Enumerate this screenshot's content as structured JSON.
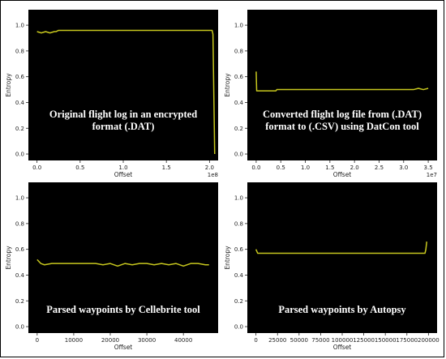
{
  "chart_data": [
    {
      "type": "line",
      "overlay_lines": [
        "Original flight log in an encrypted",
        "format (.DAT)"
      ],
      "xlabel": "Offset",
      "ylabel": "Entropy",
      "xlim": [
        -0.1,
        2.1
      ],
      "ylim": [
        -0.05,
        1.12
      ],
      "x_ticks": [
        0.0,
        0.5,
        1.0,
        1.5,
        2.0
      ],
      "x_tick_labels": [
        "0.0",
        "0.5",
        "1.0",
        "1.5",
        "2.0"
      ],
      "x_multiplier": "1e8",
      "y_ticks": [
        0.0,
        0.2,
        0.4,
        0.6,
        0.8,
        1.0
      ],
      "y_tick_labels": [
        "0.0",
        "0.2",
        "0.4",
        "0.6",
        "0.8",
        "1.0"
      ],
      "series": [
        {
          "x": [
            0.0,
            0.05,
            0.1,
            0.15,
            0.2,
            0.22,
            0.25,
            0.3,
            0.5,
            0.7,
            0.9,
            1.1,
            1.3,
            1.5,
            1.7,
            1.9,
            2.0,
            2.03,
            2.04,
            2.06
          ],
          "y": [
            0.95,
            0.94,
            0.95,
            0.94,
            0.95,
            0.95,
            0.96,
            0.96,
            0.96,
            0.96,
            0.96,
            0.96,
            0.96,
            0.96,
            0.96,
            0.96,
            0.96,
            0.96,
            0.93,
            0.0
          ]
        }
      ]
    },
    {
      "type": "line",
      "overlay_lines": [
        "Converted flight log file from (.DAT)",
        "format to (.CSV) using DatCon tool"
      ],
      "xlabel": "Offset",
      "ylabel": "Entropy",
      "xlim": [
        -0.18,
        3.68
      ],
      "ylim": [
        -0.05,
        1.12
      ],
      "x_ticks": [
        0.0,
        0.5,
        1.0,
        1.5,
        2.0,
        2.5,
        3.0,
        3.5
      ],
      "x_tick_labels": [
        "0.0",
        "0.5",
        "1.0",
        "1.5",
        "2.0",
        "2.5",
        "3.0",
        "3.5"
      ],
      "x_multiplier": "1e7",
      "y_ticks": [
        0.0,
        0.2,
        0.4,
        0.6,
        0.8,
        1.0
      ],
      "y_tick_labels": [
        "0.0",
        "0.2",
        "0.4",
        "0.6",
        "0.8",
        "1.0"
      ],
      "series": [
        {
          "x": [
            0.0,
            0.01,
            0.02,
            0.1,
            0.3,
            0.4,
            0.42,
            0.45,
            0.8,
            1.2,
            1.6,
            2.0,
            2.4,
            2.8,
            3.2,
            3.3,
            3.4,
            3.5
          ],
          "y": [
            0.64,
            0.49,
            0.49,
            0.49,
            0.49,
            0.49,
            0.5,
            0.5,
            0.5,
            0.5,
            0.5,
            0.5,
            0.5,
            0.5,
            0.5,
            0.51,
            0.5,
            0.51
          ]
        }
      ]
    },
    {
      "type": "line",
      "overlay_lines": [
        "Parsed waypoints by Cellebrite tool"
      ],
      "xlabel": "Offset",
      "ylabel": "Entropy",
      "xlim": [
        -2400,
        49500
      ],
      "ylim": [
        -0.05,
        1.12
      ],
      "x_ticks": [
        0,
        10000,
        20000,
        30000,
        40000
      ],
      "x_tick_labels": [
        "0",
        "10000",
        "20000",
        "30000",
        "40000"
      ],
      "x_multiplier": "",
      "y_ticks": [
        0.0,
        0.2,
        0.4,
        0.6,
        0.8,
        1.0
      ],
      "y_tick_labels": [
        "0.0",
        "0.2",
        "0.4",
        "0.6",
        "0.8",
        "1.0"
      ],
      "series": [
        {
          "x": [
            0,
            1000,
            2000,
            4000,
            6000,
            8000,
            10000,
            12000,
            14000,
            16000,
            18000,
            20000,
            22000,
            24000,
            26000,
            28000,
            30000,
            32000,
            34000,
            36000,
            38000,
            40000,
            42000,
            44000,
            46000,
            47000
          ],
          "y": [
            0.52,
            0.49,
            0.48,
            0.49,
            0.49,
            0.49,
            0.49,
            0.49,
            0.49,
            0.49,
            0.48,
            0.49,
            0.47,
            0.49,
            0.48,
            0.49,
            0.49,
            0.48,
            0.49,
            0.48,
            0.49,
            0.47,
            0.49,
            0.49,
            0.48,
            0.48
          ]
        }
      ]
    },
    {
      "type": "line",
      "overlay_lines": [
        "Parsed waypoints by Autopsy"
      ],
      "xlabel": "Offset",
      "ylabel": "Entropy",
      "xlim": [
        -10000,
        210000
      ],
      "ylim": [
        -0.05,
        1.12
      ],
      "x_ticks": [
        0,
        25000,
        50000,
        75000,
        100000,
        125000,
        150000,
        175000,
        200000
      ],
      "x_tick_labels": [
        "0",
        "25000",
        "50000",
        "75000",
        "100000",
        "125000",
        "150000",
        "175000",
        "200000"
      ],
      "x_multiplier": "",
      "y_ticks": [
        0.0,
        0.2,
        0.4,
        0.6,
        0.8,
        1.0
      ],
      "y_tick_labels": [
        "0.0",
        "0.2",
        "0.4",
        "0.6",
        "0.8",
        "1.0"
      ],
      "series": [
        {
          "x": [
            0,
            2000,
            10000,
            40000,
            80000,
            120000,
            160000,
            190000,
            196000,
            197000,
            198000
          ],
          "y": [
            0.6,
            0.57,
            0.57,
            0.57,
            0.57,
            0.57,
            0.57,
            0.57,
            0.57,
            0.6,
            0.66
          ]
        }
      ]
    }
  ],
  "colors": {
    "background": "#000000",
    "line": "#c8c81e",
    "text": "#ffffff"
  }
}
